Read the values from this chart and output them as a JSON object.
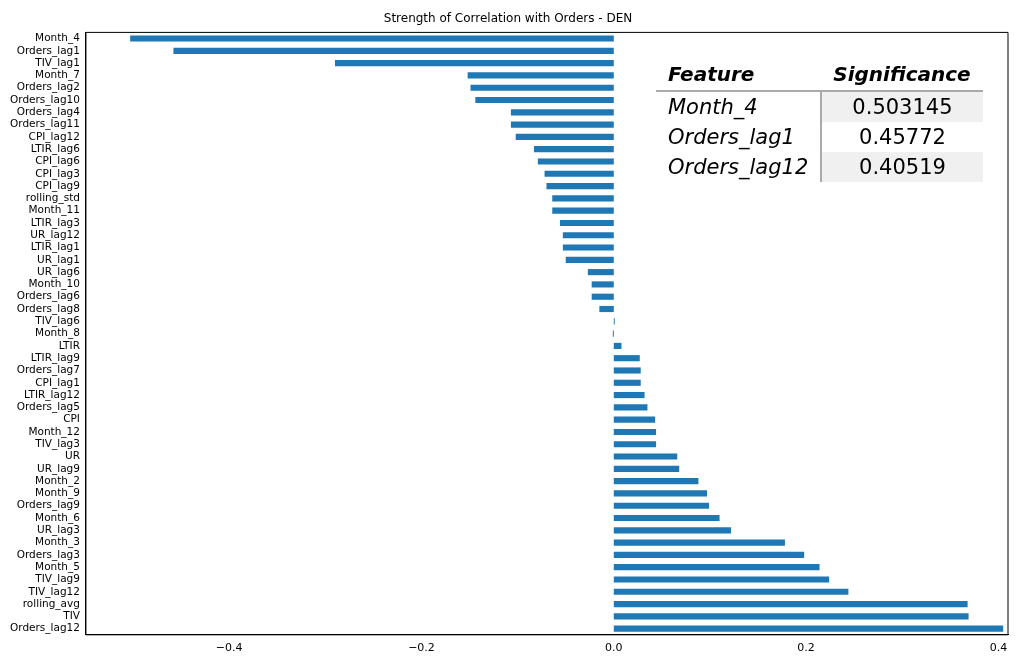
{
  "chart_data": {
    "type": "bar",
    "orientation": "horizontal",
    "title": "Strength of Correlation with Orders - DEN",
    "categories": [
      "Month_4",
      "Orders_lag1",
      "TIV_lag1",
      "Month_7",
      "Orders_lag2",
      "Orders_lag10",
      "Orders_lag4",
      "Orders_lag11",
      "CPI_lag12",
      "LTIR_lag6",
      "CPI_lag6",
      "CPI_lag3",
      "CPI_lag9",
      "rolling_std",
      "Month_11",
      "LTIR_lag3",
      "UR_lag12",
      "LTIR_lag1",
      "UR_lag1",
      "UR_lag6",
      "Month_10",
      "Orders_lag6",
      "Orders_lag8",
      "TIV_lag6",
      "Month_8",
      "LTIR",
      "LTIR_lag9",
      "Orders_lag7",
      "CPI_lag1",
      "LTIR_lag12",
      "Orders_lag5",
      "CPI",
      "Month_12",
      "TIV_lag3",
      "UR",
      "UR_lag9",
      "Month_2",
      "Month_9",
      "Orders_lag9",
      "Month_6",
      "UR_lag3",
      "Month_3",
      "Orders_lag3",
      "Month_5",
      "TIV_lag9",
      "TIV_lag12",
      "rolling_avg",
      "TIV",
      "Orders_lag12"
    ],
    "values": [
      -0.503,
      -0.458,
      -0.29,
      -0.152,
      -0.149,
      -0.144,
      -0.107,
      -0.107,
      -0.102,
      -0.083,
      -0.079,
      -0.072,
      -0.07,
      -0.064,
      -0.064,
      -0.056,
      -0.053,
      -0.053,
      -0.05,
      -0.027,
      -0.023,
      -0.023,
      -0.015,
      0.001,
      -0.001,
      0.008,
      0.027,
      0.028,
      0.028,
      0.032,
      0.035,
      0.043,
      0.044,
      0.044,
      0.066,
      0.068,
      0.088,
      0.097,
      0.099,
      0.11,
      0.122,
      0.178,
      0.198,
      0.214,
      0.224,
      0.244,
      0.368,
      0.369,
      0.405
    ],
    "color": "#1f77b4",
    "xlim": [
      -0.549,
      0.41
    ],
    "xticks": [
      {
        "value": -0.4,
        "label": "−0.4"
      },
      {
        "value": -0.2,
        "label": "−0.2"
      },
      {
        "value": 0,
        "label": "0.0"
      },
      {
        "value": 0.2,
        "label": "0.2"
      },
      {
        "value": 0.4,
        "label": "0.4"
      }
    ],
    "grid": false,
    "legend": false,
    "annotations": [
      "Feature",
      "Significance",
      "Month_4",
      "0.503145",
      "Orders_lag1",
      "0.45772",
      "Orders_lag12",
      "0.40519"
    ]
  }
}
